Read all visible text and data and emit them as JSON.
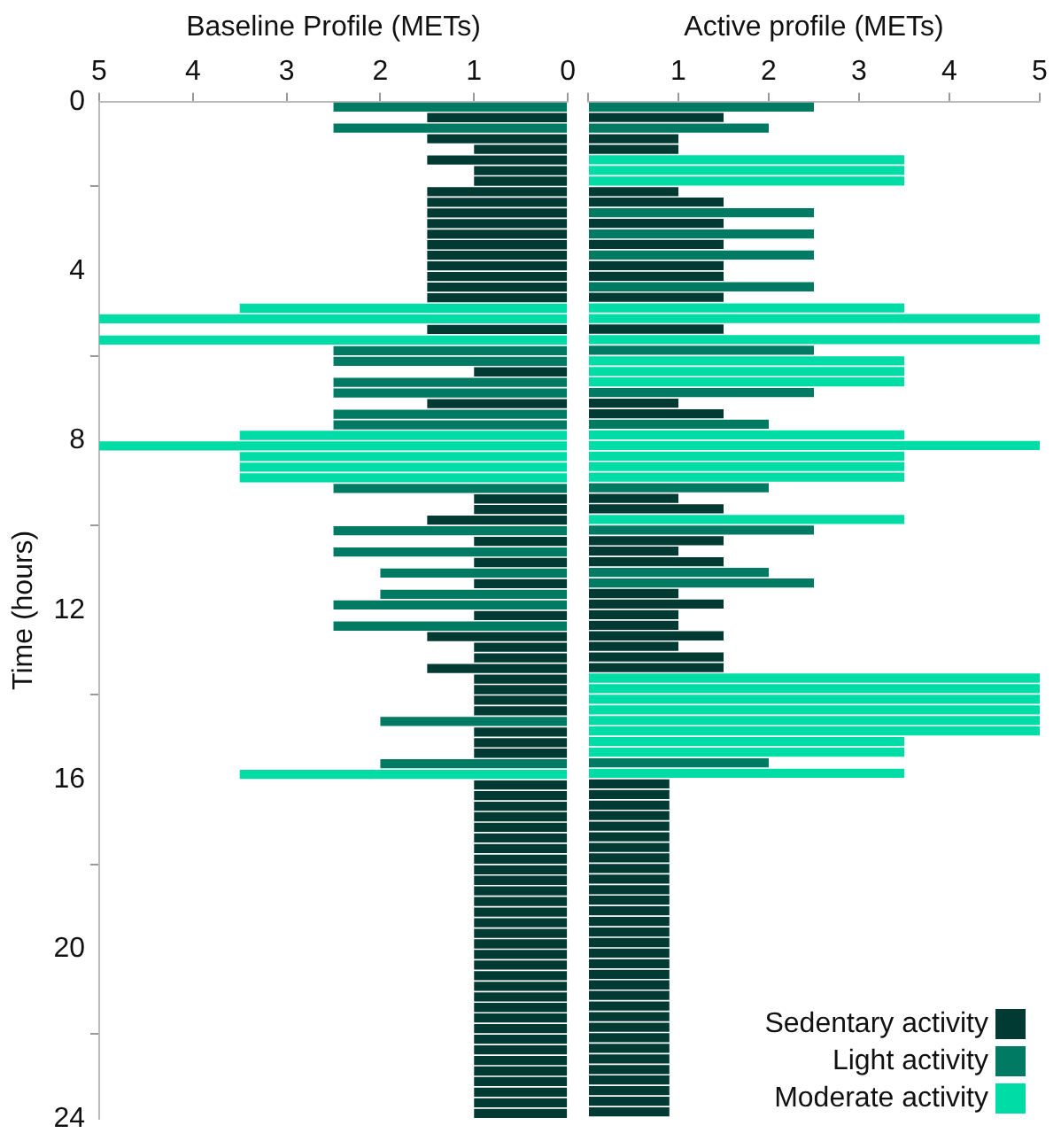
{
  "chart_data": [
    {
      "type": "bar",
      "orientation": "horizontal",
      "xlabel": "Baseline Profile (METs)",
      "ylabel": "Time (hours)",
      "xlim": [
        5,
        0
      ],
      "xticks": [
        5,
        4,
        3,
        2,
        1,
        0
      ],
      "ylim": [
        24,
        0
      ],
      "yticks": [
        0,
        4,
        8,
        12,
        16,
        20,
        24
      ],
      "grid": false,
      "legend": false,
      "series": [
        {
          "color": "#003a33",
          "x": [
            0.375,
            0.875,
            1.125,
            1.375,
            1.625,
            1.875,
            2.125,
            2.375,
            2.625,
            2.875,
            3.125,
            3.375,
            3.625,
            3.875,
            4.125,
            4.375,
            4.625,
            5.375,
            6.375,
            7.125,
            9.375,
            9.625,
            9.875,
            10.375,
            10.875,
            11.375,
            12.125,
            12.625,
            12.875,
            13.125,
            13.375,
            13.625,
            13.875,
            14.125,
            14.375,
            14.875,
            15.125,
            15.375,
            16.125,
            16.375,
            16.625,
            16.875,
            17.125,
            17.375,
            17.625,
            17.875,
            18.125,
            18.375,
            18.625,
            18.875,
            19.125,
            19.375,
            19.625,
            19.875,
            20.125,
            20.375,
            20.625,
            20.875,
            21.125,
            21.375,
            21.625,
            21.875,
            22.125,
            22.375,
            22.625,
            22.875,
            23.125,
            23.375,
            23.625,
            23.875
          ],
          "values": [
            1.5,
            1.5,
            1,
            1.5,
            1,
            1,
            1.5,
            1.5,
            1.5,
            1.5,
            1.5,
            1.5,
            1.5,
            1.5,
            1.5,
            1.5,
            1.5,
            1.5,
            1,
            1.5,
            1,
            1,
            1.5,
            1,
            1,
            1,
            1,
            1.5,
            1,
            1,
            1.5,
            1,
            1,
            1,
            1,
            1,
            1,
            1,
            1,
            1,
            1,
            1,
            1,
            1,
            1,
            1,
            1,
            1,
            1,
            1,
            1,
            1,
            1,
            1,
            1,
            1,
            1,
            1,
            1,
            1,
            1,
            1,
            1,
            1,
            1,
            1,
            1,
            1,
            1,
            1
          ]
        },
        {
          "color": "#007a63",
          "x": [
            0.125,
            0.625,
            5.875,
            6.125,
            6.625,
            6.875,
            7.375,
            7.625,
            9.125,
            10.125,
            10.625,
            11.125,
            11.625,
            11.875,
            12.375,
            14.625,
            15.625
          ],
          "values": [
            2.5,
            2.5,
            2.5,
            2.5,
            2.5,
            2.5,
            2.5,
            2.5,
            2.5,
            2.5,
            2.5,
            2,
            2,
            2.5,
            2.5,
            2,
            2
          ]
        },
        {
          "color": "#00dca5",
          "x": [
            4.875,
            5.125,
            5.625,
            7.875,
            8.125,
            8.375,
            8.625,
            8.875,
            15.875
          ],
          "values": [
            3.5,
            5,
            5,
            3.5,
            5,
            3.5,
            3.5,
            3.5,
            3.5
          ]
        }
      ]
    },
    {
      "type": "bar",
      "orientation": "horizontal",
      "xlabel": "Active profile (METs)",
      "xlim": [
        0,
        5
      ],
      "xticks": [
        {
          "value": 0,
          "label": null
        },
        1,
        2,
        3,
        4,
        5
      ],
      "ylim": [
        24,
        0
      ],
      "tick_labels": "x",
      "grid": false,
      "legend": "bottom right",
      "series": [
        {
          "name": "Sedentary activity",
          "color": "#003a33",
          "x": [
            0.375,
            0.875,
            1.125,
            2.125,
            2.375,
            2.875,
            3.375,
            3.875,
            4.125,
            4.625,
            5.375,
            7.125,
            7.375,
            9.375,
            9.625,
            10.375,
            10.625,
            10.875,
            11.625,
            11.875,
            12.125,
            12.375,
            12.625,
            12.875,
            13.125,
            13.375,
            16.125,
            16.375,
            16.625,
            16.875,
            17.125,
            17.375,
            17.625,
            17.875,
            18.125,
            18.375,
            18.625,
            18.875,
            19.125,
            19.375,
            19.625,
            19.875,
            20.125,
            20.375,
            20.625,
            20.875,
            21.125,
            21.375,
            21.625,
            21.875,
            22.125,
            22.375,
            22.625,
            22.875,
            23.125,
            23.375,
            23.625,
            23.875
          ],
          "values": [
            1.5,
            1,
            1,
            1,
            1.5,
            1.5,
            1.5,
            1.5,
            1.5,
            1.5,
            1.5,
            1,
            1.5,
            1,
            1.5,
            1.5,
            1,
            1.5,
            1,
            1.5,
            1,
            1,
            1.5,
            1,
            1.5,
            1.5,
            0.9,
            0.9,
            0.9,
            0.9,
            0.9,
            0.9,
            0.9,
            0.9,
            0.9,
            0.9,
            0.9,
            0.9,
            0.9,
            0.9,
            0.9,
            0.9,
            0.9,
            0.9,
            0.9,
            0.9,
            0.9,
            0.9,
            0.9,
            0.9,
            0.9,
            0.9,
            0.9,
            0.9,
            0.9,
            0.9,
            0.9,
            0.9
          ]
        },
        {
          "name": "Light activity",
          "color": "#007a63",
          "x": [
            0.125,
            0.625,
            2.625,
            3.125,
            3.625,
            4.375,
            5.875,
            6.875,
            7.625,
            9.125,
            10.125,
            11.125,
            11.375,
            15.625
          ],
          "values": [
            2.5,
            2,
            2.5,
            2.5,
            2.5,
            2.5,
            2.5,
            2.5,
            2,
            2,
            2.5,
            2,
            2.5,
            2
          ]
        },
        {
          "name": "Moderate activity",
          "color": "#00dca5",
          "x": [
            1.375,
            1.625,
            1.875,
            4.875,
            5.125,
            5.625,
            6.125,
            6.375,
            6.625,
            7.875,
            8.125,
            8.375,
            8.625,
            8.875,
            9.875,
            13.625,
            13.875,
            14.125,
            14.375,
            14.625,
            14.875,
            15.125,
            15.375,
            15.875
          ],
          "values": [
            3.5,
            3.5,
            3.5,
            3.5,
            5,
            5,
            3.5,
            3.5,
            3.5,
            3.5,
            5,
            3.5,
            3.5,
            3.5,
            3.5,
            5,
            5,
            5,
            5,
            5,
            5,
            3.5,
            3.5,
            3.5
          ]
        }
      ]
    }
  ]
}
